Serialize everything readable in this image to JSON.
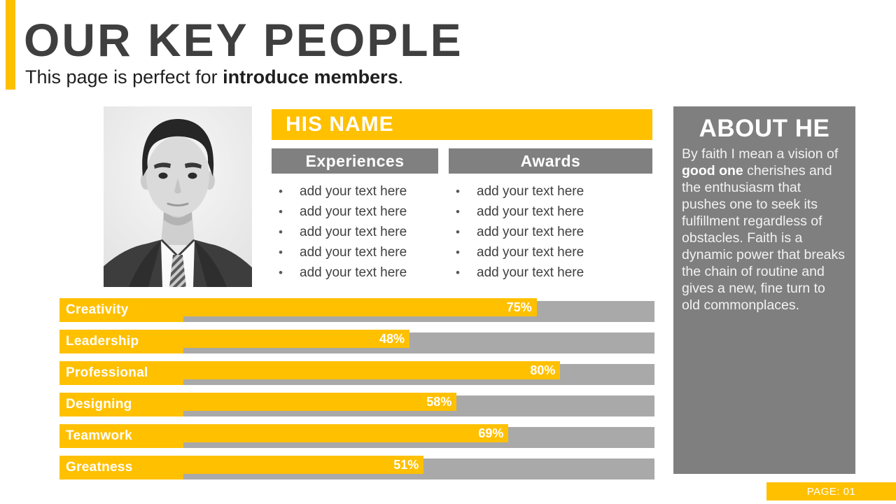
{
  "slide": {
    "title": "OUR KEY PEOPLE",
    "subtitle_prefix": "This page is perfect for ",
    "subtitle_bold": "introduce members",
    "subtitle_suffix": "."
  },
  "profile": {
    "name": "HIS NAME",
    "photo": "grayscale-male-portrait",
    "columns": [
      {
        "header": "Experiences",
        "items": [
          "add your text here",
          "add your text here",
          "add your text here",
          "add your text here",
          "add your text here"
        ]
      },
      {
        "header": "Awards",
        "items": [
          "add your text here",
          "add your text here",
          "add your text here",
          "add your text here",
          "add your text here"
        ]
      }
    ]
  },
  "about": {
    "title": "ABOUT HE",
    "body_prefix": "By faith I mean a vision of ",
    "body_bold": "good one",
    "body_suffix": " cherishes and the enthusiasm that pushes one to seek its fulfillment regardless of obstacles. Faith is a dynamic power that breaks the chain of routine and gives a new, fine turn to old commonplaces."
  },
  "chart_data": {
    "type": "bar",
    "orientation": "horizontal",
    "categories": [
      "Creativity",
      "Leadership",
      "Professional",
      "Designing",
      "Teamwork",
      "Greatness"
    ],
    "values": [
      75,
      48,
      80,
      58,
      69,
      51
    ],
    "value_labels": [
      "75%",
      "48%",
      "80%",
      "58%",
      "69%",
      "51%"
    ],
    "xlim": [
      0,
      100
    ],
    "grid": false,
    "legend": false,
    "bar_color": "#FFC000",
    "track_color": "#A9A9A9"
  },
  "footer": {
    "page_label": "PAGE: 01"
  },
  "colors": {
    "accent": "#FFC000",
    "panel_gray": "#7F7F7F",
    "header_bar_gray": "#808080",
    "track_gray": "#A9A9A9",
    "title_text": "#3F3F3F"
  }
}
